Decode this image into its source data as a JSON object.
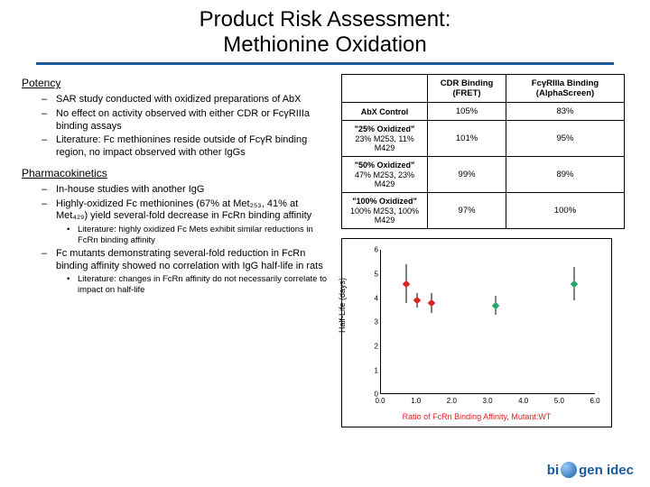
{
  "title_line1": "Product Risk Assessment:",
  "title_line2": "Methionine Oxidation",
  "brand_prefix": "bi",
  "brand_suffix": "gen idec",
  "sections": {
    "potency": {
      "heading": "Potency",
      "items": [
        "SAR study conducted with oxidized preparations of AbX",
        "No effect on activity observed with either CDR or FcγRIIIa binding assays",
        "Literature: Fc methionines reside outside of FcγR binding region, no impact observed with other IgGs"
      ]
    },
    "pk": {
      "heading": "Pharmacokinetics",
      "items": [
        "In-house studies with another IgG",
        "Highly-oxidized Fc methionines (67% at Met₂₅₃, 41% at Met₄₂₉) yield several-fold decrease in FcRn binding affinity",
        "Fc mutants demonstrating several-fold reduction in FcRn binding affinity showed no correlation with IgG half-life in rats"
      ],
      "subnotes": {
        "1": "Literature: highly oxidized Fc Mets exhibit similar reductions in FcRn binding affinity",
        "2": "Literature: changes in FcRn affinity do not necessarily correlate to impact on half-life"
      }
    }
  },
  "table": {
    "headers": [
      "",
      "CDR Binding (FRET)",
      "FcγRIIIa Binding (AlphaScreen)"
    ],
    "rows": [
      {
        "label": "AbX Control",
        "sub": "",
        "v1": "105%",
        "v2": "83%"
      },
      {
        "label": "\"25% Oxidized\"",
        "sub": "23% M253, 11% M429",
        "v1": "101%",
        "v2": "95%"
      },
      {
        "label": "\"50% Oxidized\"",
        "sub": "47% M253, 23% M429",
        "v1": "99%",
        "v2": "89%"
      },
      {
        "label": "\"100% Oxidized\"",
        "sub": "100% M253, 100% M429",
        "v1": "97%",
        "v2": "100%"
      }
    ]
  },
  "chart": {
    "type": "scatter",
    "xlabel": "Ratio of FcRn Binding Affinity, Mutant:WT",
    "ylabel": "Half-Life (days)",
    "xlim": [
      0,
      6
    ],
    "ylim": [
      0,
      6
    ],
    "xticks": [
      0.0,
      1.0,
      2.0,
      3.0,
      4.0,
      5.0,
      6.0
    ],
    "yticks": [
      0,
      1,
      2,
      3,
      4,
      5,
      6
    ],
    "background_color": "#ffffff",
    "series": [
      {
        "color": "#d22",
        "marker": "diamond",
        "points": [
          {
            "x": 0.7,
            "y": 4.6,
            "err": 0.8
          },
          {
            "x": 1.0,
            "y": 3.9,
            "err": 0.3
          },
          {
            "x": 1.4,
            "y": 3.8,
            "err": 0.4
          }
        ]
      },
      {
        "color": "#2a6",
        "marker": "diamond",
        "points": [
          {
            "x": 3.2,
            "y": 3.7,
            "err": 0.4
          },
          {
            "x": 5.4,
            "y": 4.6,
            "err": 0.7
          }
        ]
      }
    ]
  }
}
